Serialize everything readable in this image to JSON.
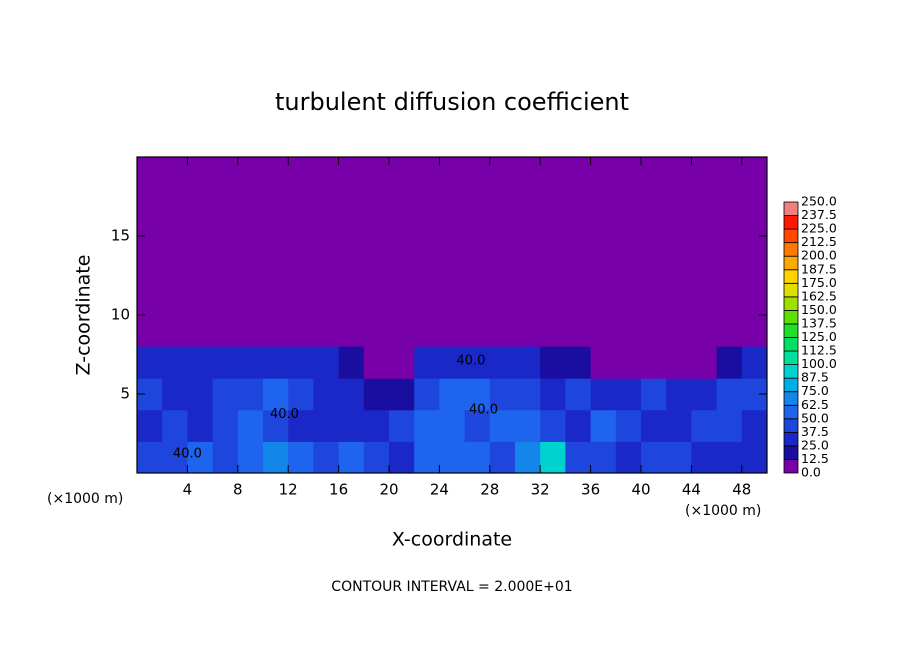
{
  "chart_data": {
    "type": "heatmap",
    "title": "turbulent diffusion coefficient",
    "xlabel": "X-coordinate",
    "ylabel": "Z-coordinate",
    "x_unit": "(×1000 m)",
    "x_unit_right": "(×1000 m)",
    "footer": "CONTOUR INTERVAL = 2.000E+01",
    "xlim": [
      0,
      50
    ],
    "ylim": [
      0,
      20
    ],
    "xticks": [
      4,
      8,
      12,
      16,
      20,
      24,
      28,
      32,
      36,
      40,
      44,
      48
    ],
    "yticks": [
      5,
      10,
      15
    ],
    "x_edges": [
      0,
      2,
      4,
      6,
      8,
      10,
      12,
      14,
      16,
      18,
      20,
      22,
      24,
      26,
      28,
      30,
      32,
      34,
      36,
      38,
      40,
      42,
      44,
      46,
      48,
      50
    ],
    "z_edges": [
      0,
      2,
      4,
      6,
      8
    ],
    "values": [
      [
        40,
        45,
        50,
        40,
        60,
        65,
        55,
        45,
        50,
        45,
        35,
        60,
        55,
        50,
        40,
        70,
        90,
        45,
        40,
        35,
        45,
        40,
        30,
        35,
        30
      ],
      [
        35,
        40,
        30,
        45,
        55,
        40,
        35,
        30,
        35,
        30,
        40,
        50,
        55,
        45,
        60,
        50,
        40,
        35,
        50,
        40,
        35,
        30,
        45,
        40,
        35
      ],
      [
        40,
        35,
        30,
        40,
        45,
        50,
        40,
        35,
        30,
        20,
        15,
        45,
        55,
        50,
        45,
        40,
        35,
        40,
        30,
        25,
        40,
        35,
        30,
        40,
        45
      ],
      [
        30,
        35,
        30,
        25,
        30,
        35,
        30,
        25,
        15,
        5,
        0,
        25,
        30,
        35,
        30,
        25,
        20,
        15,
        10,
        5,
        0,
        0,
        10,
        20,
        30
      ]
    ],
    "levels": [
      {
        "value": 0,
        "label": "0.0"
      },
      {
        "value": 12.5,
        "label": "12.5"
      },
      {
        "value": 25,
        "label": "25.0"
      },
      {
        "value": 37.5,
        "label": "37.5"
      },
      {
        "value": 50,
        "label": "50.0"
      },
      {
        "value": 62.5,
        "label": "62.5"
      },
      {
        "value": 75,
        "label": "75.0"
      },
      {
        "value": 87.5,
        "label": "87.5"
      },
      {
        "value": 100,
        "label": "100.0"
      },
      {
        "value": 112.5,
        "label": "112.5"
      },
      {
        "value": 125,
        "label": "125.0"
      },
      {
        "value": 137.5,
        "label": "137.5"
      },
      {
        "value": 150,
        "label": "150.0"
      },
      {
        "value": 162.5,
        "label": "162.5"
      },
      {
        "value": 175,
        "label": "175.0"
      },
      {
        "value": 187.5,
        "label": "187.5"
      },
      {
        "value": 200,
        "label": "200.0"
      },
      {
        "value": 212.5,
        "label": "212.5"
      },
      {
        "value": 225,
        "label": "225.0"
      },
      {
        "value": 237.5,
        "label": "237.5"
      },
      {
        "value": 250,
        "label": "250.0"
      }
    ],
    "level_colors": [
      "#7800a8",
      "#1a0ea0",
      "#1a28c8",
      "#1e46dc",
      "#1e64ec",
      "#1486ea",
      "#00aee6",
      "#00d2d0",
      "#00e09a",
      "#00e064",
      "#1ee028",
      "#5ce000",
      "#9ee000",
      "#e0e000",
      "#ffd400",
      "#ffa800",
      "#ff7800",
      "#ff4800",
      "#ff1800",
      "#f08080"
    ],
    "annotations": [
      {
        "text": "40.0",
        "x": 4,
        "z": 1.2
      },
      {
        "text": "40.0",
        "x": 11.7,
        "z": 3.7
      },
      {
        "text": "40.0",
        "x": 27.5,
        "z": 4.0
      },
      {
        "text": "40.0",
        "x": 26.5,
        "z": 7.1
      }
    ]
  }
}
